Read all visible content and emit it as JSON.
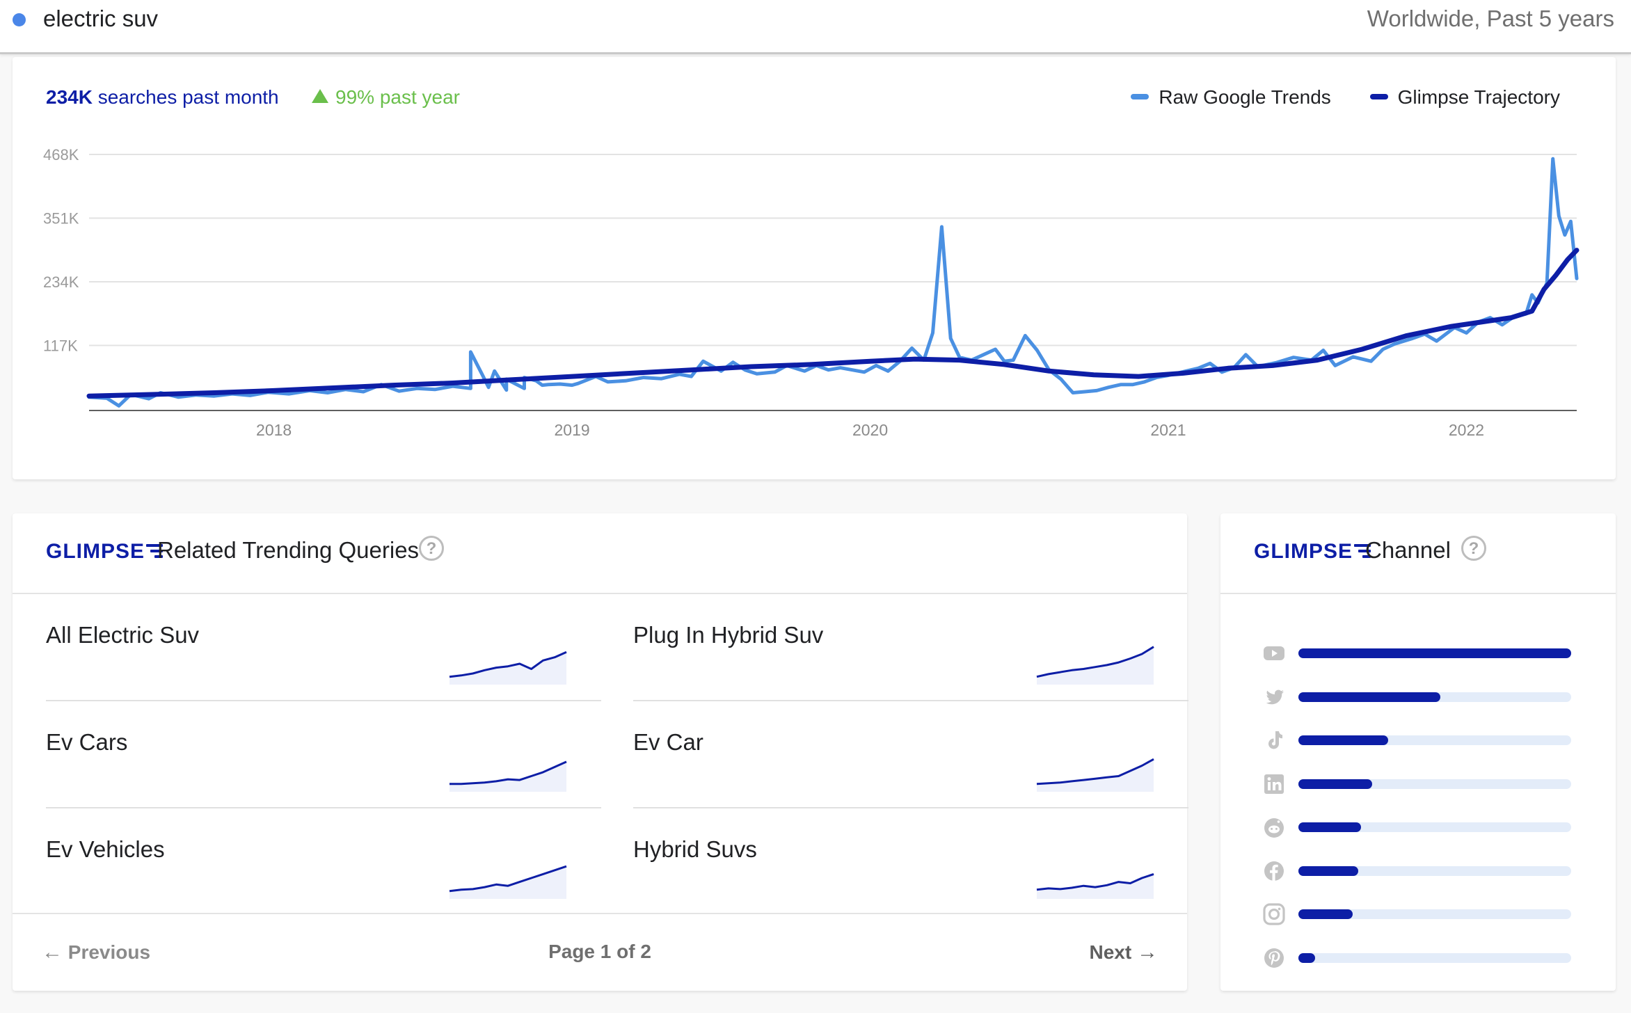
{
  "search": {
    "query": "electric suv",
    "scope": "Worldwide, Past 5 years"
  },
  "trend": {
    "searches_value": "234K",
    "searches_label": " searches past month",
    "growth": "99% past year",
    "legend": [
      {
        "label": "Raw Google Trends",
        "color": "#4a90e2"
      },
      {
        "label": "Glimpse Trajectory",
        "color": "#0d1ea6"
      }
    ]
  },
  "chart_data": {
    "type": "line",
    "y_ticks": [
      "468K",
      "351K",
      "234K",
      "117K"
    ],
    "x_ticks": [
      "2018",
      "2019",
      "2020",
      "2021",
      "2022"
    ],
    "ylim": [
      0,
      468000
    ],
    "xlim": [
      2017.38,
      2022.37
    ],
    "grid": true,
    "series": [
      {
        "name": "Raw Google Trends",
        "color": "#4a90e2",
        "points": [
          [
            2017.38,
            22000
          ],
          [
            2017.44,
            20000
          ],
          [
            2017.48,
            6000
          ],
          [
            2017.52,
            27000
          ],
          [
            2017.58,
            19000
          ],
          [
            2017.62,
            30000
          ],
          [
            2017.68,
            22000
          ],
          [
            2017.74,
            26000
          ],
          [
            2017.8,
            24000
          ],
          [
            2017.86,
            28000
          ],
          [
            2017.92,
            25000
          ],
          [
            2017.98,
            31000
          ],
          [
            2018.05,
            28000
          ],
          [
            2018.12,
            34000
          ],
          [
            2018.18,
            30000
          ],
          [
            2018.24,
            36000
          ],
          [
            2018.3,
            32000
          ],
          [
            2018.36,
            45000
          ],
          [
            2018.42,
            33000
          ],
          [
            2018.48,
            38000
          ],
          [
            2018.54,
            36000
          ],
          [
            2018.6,
            42000
          ],
          [
            2018.66,
            38000
          ],
          [
            2018.72,
            40000
          ],
          [
            2018.78,
            35000
          ],
          [
            2018.84,
            38000
          ],
          [
            2018.9,
            44000
          ],
          [
            2018.96,
            46000
          ],
          [
            2019.0,
            44000
          ],
          [
            2018.66,
            105000
          ],
          [
            2018.7,
            62000
          ],
          [
            2018.74,
            70000
          ],
          [
            2018.78,
            55000
          ],
          [
            2018.84,
            58000
          ],
          [
            2018.88,
            52000
          ],
          [
            2018.92,
            45000
          ],
          [
            2019.02,
            47000
          ],
          [
            2019.08,
            60000
          ],
          [
            2019.12,
            50000
          ],
          [
            2019.18,
            52000
          ],
          [
            2019.24,
            58000
          ],
          [
            2019.3,
            56000
          ],
          [
            2019.36,
            64000
          ],
          [
            2019.4,
            60000
          ],
          [
            2019.44,
            88000
          ],
          [
            2019.5,
            70000
          ],
          [
            2019.54,
            86000
          ],
          [
            2019.58,
            72000
          ],
          [
            2019.62,
            65000
          ],
          [
            2019.68,
            68000
          ],
          [
            2019.72,
            80000
          ],
          [
            2019.78,
            70000
          ],
          [
            2019.82,
            80000
          ],
          [
            2019.86,
            72000
          ],
          [
            2019.9,
            76000
          ],
          [
            2019.94,
            72000
          ],
          [
            2019.98,
            68000
          ],
          [
            2020.02,
            80000
          ],
          [
            2020.06,
            70000
          ],
          [
            2020.1,
            88000
          ],
          [
            2020.14,
            112000
          ],
          [
            2020.18,
            90000
          ],
          [
            2020.21,
            140000
          ],
          [
            2020.24,
            335000
          ],
          [
            2020.27,
            130000
          ],
          [
            2020.3,
            95000
          ],
          [
            2020.34,
            90000
          ],
          [
            2020.38,
            100000
          ],
          [
            2020.42,
            110000
          ],
          [
            2020.45,
            88000
          ],
          [
            2020.48,
            90000
          ],
          [
            2020.52,
            135000
          ],
          [
            2020.56,
            108000
          ],
          [
            2020.6,
            72000
          ],
          [
            2020.64,
            55000
          ],
          [
            2020.68,
            30000
          ],
          [
            2020.72,
            32000
          ],
          [
            2020.76,
            34000
          ],
          [
            2020.8,
            40000
          ],
          [
            2020.84,
            45000
          ],
          [
            2020.88,
            45000
          ],
          [
            2020.92,
            50000
          ],
          [
            2020.96,
            58000
          ],
          [
            2021.0,
            62000
          ],
          [
            2021.06,
            70000
          ],
          [
            2021.1,
            75000
          ],
          [
            2021.14,
            84000
          ],
          [
            2021.18,
            68000
          ],
          [
            2021.22,
            76000
          ],
          [
            2021.26,
            100000
          ],
          [
            2021.3,
            78000
          ],
          [
            2021.36,
            85000
          ],
          [
            2021.42,
            95000
          ],
          [
            2021.48,
            90000
          ],
          [
            2021.52,
            108000
          ],
          [
            2021.56,
            80000
          ],
          [
            2021.62,
            96000
          ],
          [
            2021.68,
            88000
          ],
          [
            2021.72,
            110000
          ],
          [
            2021.76,
            120000
          ],
          [
            2021.82,
            130000
          ],
          [
            2021.86,
            138000
          ],
          [
            2021.9,
            125000
          ],
          [
            2021.96,
            150000
          ],
          [
            2022.0,
            140000
          ],
          [
            2022.04,
            160000
          ],
          [
            2022.08,
            168000
          ],
          [
            2022.12,
            155000
          ],
          [
            2022.16,
            170000
          ],
          [
            2022.2,
            175000
          ],
          [
            2022.22,
            210000
          ],
          [
            2022.24,
            195000
          ],
          [
            2022.27,
            232000
          ],
          [
            2022.29,
            460000
          ],
          [
            2022.31,
            355000
          ],
          [
            2022.33,
            320000
          ],
          [
            2022.35,
            345000
          ],
          [
            2022.37,
            240000
          ]
        ]
      },
      {
        "name": "Glimpse Trajectory",
        "color": "#0d1ea6",
        "points": [
          [
            2017.38,
            24000
          ],
          [
            2017.6,
            27000
          ],
          [
            2017.8,
            30000
          ],
          [
            2018.0,
            34000
          ],
          [
            2018.2,
            39000
          ],
          [
            2018.4,
            44000
          ],
          [
            2018.6,
            48000
          ],
          [
            2018.8,
            54000
          ],
          [
            2019.0,
            60000
          ],
          [
            2019.2,
            66000
          ],
          [
            2019.4,
            72000
          ],
          [
            2019.6,
            78000
          ],
          [
            2019.8,
            82000
          ],
          [
            2020.0,
            88000
          ],
          [
            2020.15,
            92000
          ],
          [
            2020.3,
            90000
          ],
          [
            2020.45,
            82000
          ],
          [
            2020.6,
            70000
          ],
          [
            2020.75,
            63000
          ],
          [
            2020.9,
            60000
          ],
          [
            2021.05,
            66000
          ],
          [
            2021.2,
            75000
          ],
          [
            2021.35,
            80000
          ],
          [
            2021.5,
            90000
          ],
          [
            2021.65,
            110000
          ],
          [
            2021.8,
            135000
          ],
          [
            2021.95,
            152000
          ],
          [
            2022.05,
            160000
          ],
          [
            2022.15,
            168000
          ],
          [
            2022.22,
            180000
          ],
          [
            2022.26,
            220000
          ],
          [
            2022.3,
            246000
          ],
          [
            2022.34,
            275000
          ],
          [
            2022.37,
            292000
          ]
        ]
      }
    ]
  },
  "related": {
    "title": "Related Trending Queries",
    "logo": "GLIMPSE",
    "items": [
      {
        "label": "All Electric Suv",
        "spark": [
          10,
          12,
          15,
          20,
          24,
          26,
          30,
          22,
          35,
          40,
          48
        ]
      },
      {
        "label": "Plug In Hybrid Suv",
        "spark": [
          10,
          14,
          17,
          20,
          22,
          25,
          28,
          32,
          38,
          45,
          56
        ]
      },
      {
        "label": "Ev Cars",
        "spark": [
          10,
          10,
          11,
          12,
          14,
          17,
          16,
          22,
          28,
          36,
          44
        ]
      },
      {
        "label": "Ev Car",
        "spark": [
          10,
          11,
          12,
          14,
          16,
          18,
          20,
          22,
          30,
          38,
          48
        ]
      },
      {
        "label": "Ev Vehicles",
        "spark": [
          10,
          12,
          13,
          16,
          20,
          18,
          24,
          30,
          36,
          42,
          48
        ]
      },
      {
        "label": "Hybrid Suvs",
        "spark": [
          12,
          14,
          13,
          15,
          18,
          16,
          19,
          24,
          22,
          30,
          36
        ]
      }
    ],
    "pager": {
      "previous": "Previous",
      "page": "Page 1 of 2",
      "next": "Next"
    }
  },
  "channel": {
    "title": "Channel",
    "logo": "GLIMPSE",
    "items": [
      {
        "name": "youtube-icon",
        "share": 1.0
      },
      {
        "name": "twitter-icon",
        "share": 0.52
      },
      {
        "name": "tiktok-icon",
        "share": 0.33
      },
      {
        "name": "linkedin-icon",
        "share": 0.27
      },
      {
        "name": "reddit-icon",
        "share": 0.23
      },
      {
        "name": "facebook-icon",
        "share": 0.22
      },
      {
        "name": "instagram-icon",
        "share": 0.2
      },
      {
        "name": "pinterest-icon",
        "share": 0.06
      }
    ]
  }
}
